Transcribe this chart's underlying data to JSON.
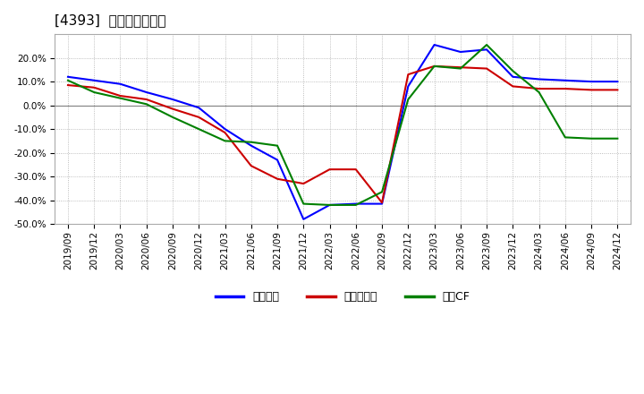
{
  "title": "[4393]  マージンの推移",
  "series": {
    "経常利益": {
      "color": "#0000FF",
      "data": [
        [
          "2019/09",
          12.0
        ],
        [
          "2019/12",
          10.5
        ],
        [
          "2020/03",
          9.0
        ],
        [
          "2020/06",
          5.5
        ],
        [
          "2020/09",
          2.5
        ],
        [
          "2020/12",
          -1.0
        ],
        [
          "2021/03",
          -10.0
        ],
        [
          "2021/06",
          -17.0
        ],
        [
          "2021/09",
          -23.0
        ],
        [
          "2021/12",
          -48.0
        ],
        [
          "2022/03",
          -42.0
        ],
        [
          "2022/06",
          -41.5
        ],
        [
          "2022/09",
          -41.5
        ],
        [
          "2022/12",
          8.0
        ],
        [
          "2023/03",
          25.5
        ],
        [
          "2023/06",
          22.5
        ],
        [
          "2023/09",
          23.5
        ],
        [
          "2023/12",
          12.0
        ],
        [
          "2024/03",
          11.0
        ],
        [
          "2024/06",
          10.5
        ],
        [
          "2024/09",
          10.0
        ],
        [
          "2024/12",
          10.0
        ]
      ]
    },
    "当期純利益": {
      "color": "#CC0000",
      "data": [
        [
          "2019/09",
          8.5
        ],
        [
          "2019/12",
          7.5
        ],
        [
          "2020/03",
          4.0
        ],
        [
          "2020/06",
          2.5
        ],
        [
          "2020/09",
          -1.5
        ],
        [
          "2020/12",
          -5.0
        ],
        [
          "2021/03",
          -11.5
        ],
        [
          "2021/06",
          -25.5
        ],
        [
          "2021/09",
          -31.0
        ],
        [
          "2021/12",
          -33.0
        ],
        [
          "2022/03",
          -27.0
        ],
        [
          "2022/06",
          -27.0
        ],
        [
          "2022/09",
          -41.0
        ],
        [
          "2022/12",
          13.0
        ],
        [
          "2023/03",
          16.5
        ],
        [
          "2023/06",
          16.0
        ],
        [
          "2023/09",
          15.5
        ],
        [
          "2023/12",
          8.0
        ],
        [
          "2024/03",
          7.0
        ],
        [
          "2024/06",
          7.0
        ],
        [
          "2024/09",
          6.5
        ],
        [
          "2024/12",
          6.5
        ]
      ]
    },
    "営業CF": {
      "color": "#008000",
      "data": [
        [
          "2019/09",
          10.5
        ],
        [
          "2019/12",
          5.5
        ],
        [
          "2020/03",
          3.0
        ],
        [
          "2020/06",
          0.5
        ],
        [
          "2020/09",
          -5.0
        ],
        [
          "2020/12",
          -10.0
        ],
        [
          "2021/03",
          -15.0
        ],
        [
          "2021/06",
          -15.5
        ],
        [
          "2021/09",
          -17.0
        ],
        [
          "2021/12",
          -41.5
        ],
        [
          "2022/03",
          -42.0
        ],
        [
          "2022/06",
          -42.0
        ],
        [
          "2022/09",
          -36.5
        ],
        [
          "2022/12",
          2.5
        ],
        [
          "2023/03",
          16.5
        ],
        [
          "2023/06",
          15.5
        ],
        [
          "2023/09",
          25.5
        ],
        [
          "2023/12",
          14.5
        ],
        [
          "2024/03",
          5.5
        ],
        [
          "2024/06",
          -13.5
        ],
        [
          "2024/09",
          -14.0
        ],
        [
          "2024/12",
          -14.0
        ]
      ]
    }
  },
  "ylim": [
    -50,
    30
  ],
  "yticks": [
    -50,
    -40,
    -30,
    -20,
    -10,
    0,
    10,
    20
  ],
  "background_color": "#FFFFFF",
  "plot_bg_color": "#FFFFFF",
  "grid_color": "#AAAAAA",
  "zero_line_color": "#888888",
  "legend_labels": [
    "経常利益",
    "当期純利益",
    "営業CF"
  ],
  "title_fontsize": 11,
  "axis_fontsize": 7.5,
  "legend_fontsize": 9,
  "line_width": 1.5
}
